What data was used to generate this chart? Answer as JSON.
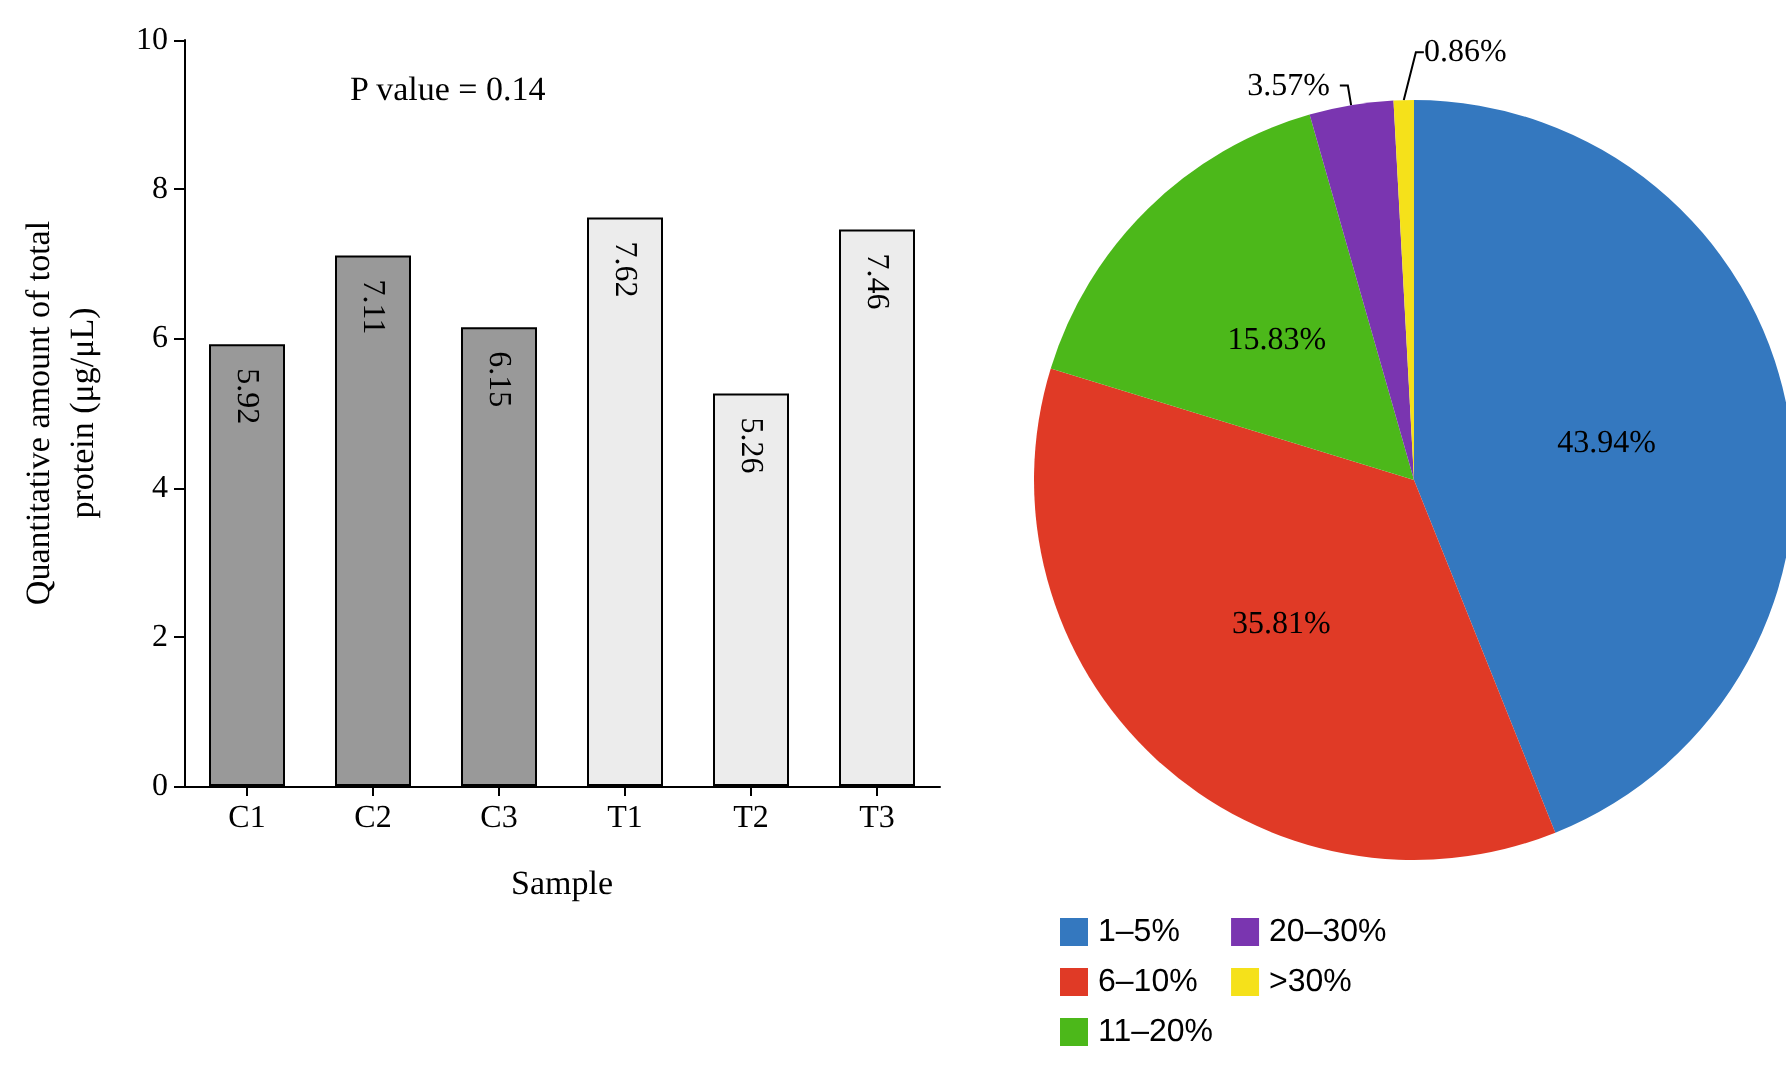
{
  "chart_data": [
    {
      "type": "bar",
      "categories": [
        "C1",
        "C2",
        "C3",
        "T1",
        "T2",
        "T3"
      ],
      "values": [
        5.92,
        7.11,
        6.15,
        7.62,
        5.26,
        7.46
      ],
      "colors": [
        "#999999",
        "#999999",
        "#999999",
        "#ececec",
        "#ececec",
        "#ececec"
      ],
      "data_labels": true,
      "xlabel": "Sample",
      "ylabel": "Quantitative amount of total\nprotein (μg/μL)",
      "ylim": [
        0,
        10
      ],
      "yticks": [
        0,
        2,
        4,
        6,
        8,
        10
      ],
      "grid": false,
      "annotations": [
        "P value = 0.14"
      ]
    },
    {
      "type": "pie",
      "categories": [
        "1–5%",
        "6–10%",
        "11–20%",
        "20–30%",
        ">30%"
      ],
      "values": [
        43.94,
        35.81,
        15.83,
        3.57,
        0.86
      ],
      "colors": [
        "#3478bf",
        "#e03a26",
        "#4cb81a",
        "#7a35b0",
        "#f5e11a"
      ],
      "value_labels": [
        "43.94%",
        "35.81%",
        "15.83%",
        "3.57%",
        "0.86%"
      ],
      "legend": "bottom"
    }
  ]
}
